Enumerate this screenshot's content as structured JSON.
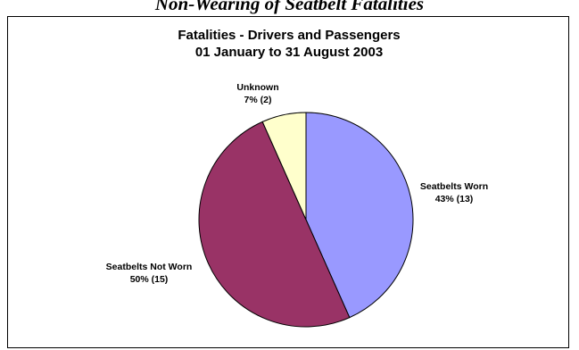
{
  "page": {
    "heading": "Non-Wearing of Seatbelt Fatalities"
  },
  "chart_data": {
    "type": "pie",
    "title": "Fatalities - Drivers and Passengers",
    "subtitle": "01 January to 31 August 2003",
    "slices": [
      {
        "name": "Seatbelts Worn",
        "value": 13,
        "percent": "43%",
        "count_label": "(13)",
        "color": "#9999ff"
      },
      {
        "name": "Seatbelts Not Worn",
        "value": 15,
        "percent": "50%",
        "count_label": "(15)",
        "color": "#993366"
      },
      {
        "name": "Unknown",
        "value": 2,
        "percent": "7%",
        "count_label": "(2)",
        "color": "#ffffcc"
      }
    ],
    "start_angle_deg": 0,
    "direction": "clockwise",
    "legend": "none",
    "data_labels": "outside"
  }
}
